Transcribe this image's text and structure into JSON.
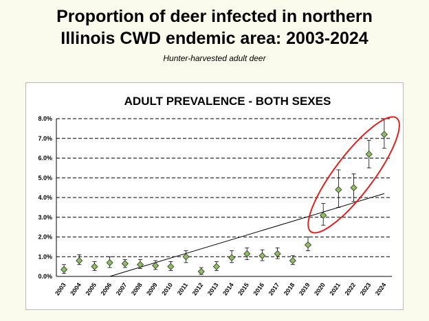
{
  "slide": {
    "title_line1": "Proportion of deer infected in northern",
    "title_line2": "Illinois CWD endemic area: 2003-2024",
    "subtitle": "Hunter-harvested adult deer"
  },
  "chart_data": {
    "type": "scatter",
    "title": "ADULT PREVALENCE - BOTH SEXES",
    "xlabel": "",
    "ylabel": "",
    "categories": [
      "2003",
      "2004",
      "2005",
      "2006",
      "2007",
      "2008",
      "2009",
      "2010",
      "2011",
      "2012",
      "2013",
      "2014",
      "2015",
      "2016",
      "2017",
      "2018",
      "2019",
      "2020",
      "2021",
      "2022",
      "2023",
      "2024"
    ],
    "values": [
      0.35,
      0.8,
      0.5,
      0.7,
      0.65,
      0.6,
      0.55,
      0.5,
      1.0,
      0.25,
      0.5,
      0.95,
      1.15,
      1.05,
      1.15,
      0.8,
      1.6,
      3.1,
      4.4,
      4.5,
      6.2,
      7.2
    ],
    "error_low": [
      0.15,
      0.6,
      0.3,
      0.45,
      0.45,
      0.4,
      0.35,
      0.3,
      0.7,
      0.1,
      0.3,
      0.7,
      0.85,
      0.8,
      0.9,
      0.6,
      1.3,
      2.6,
      3.5,
      3.8,
      5.5,
      6.5
    ],
    "error_high": [
      0.6,
      1.1,
      0.75,
      1.0,
      0.85,
      0.85,
      0.8,
      0.75,
      1.3,
      0.45,
      0.75,
      1.3,
      1.45,
      1.35,
      1.45,
      1.05,
      2.0,
      3.7,
      5.4,
      5.2,
      6.9,
      8.0
    ],
    "trendline": {
      "from": [
        "2006",
        0.0
      ],
      "to": [
        "2024",
        4.2
      ]
    },
    "highlight": {
      "from": "2020",
      "to": "2024"
    },
    "ylim": [
      0,
      8
    ],
    "yticks": [
      "0.0%",
      "1.0%",
      "2.0%",
      "3.0%",
      "4.0%",
      "5.0%",
      "6.0%",
      "7.0%",
      "8.0%"
    ],
    "grid": true,
    "legend": "none",
    "colors": {
      "marker": "#8dbf5e",
      "trend": "#000000",
      "highlight": "#e0201d",
      "grid": "#000000"
    }
  }
}
